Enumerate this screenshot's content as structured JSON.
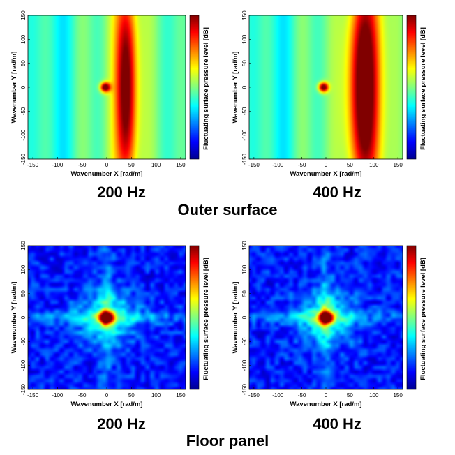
{
  "figure": {
    "sections": [
      {
        "name": "outer",
        "caption": "Outer surface"
      },
      {
        "name": "floor",
        "caption": "Floor panel"
      }
    ]
  },
  "chart_data": [
    {
      "type": "heatmap",
      "section": "Outer surface",
      "frequency_label": "200 Hz",
      "xlabel": "Wavenumber X [rad/m]",
      "ylabel": "Wavenumber Y [rad/m]",
      "colorbar_label": "Fluctuating surface pressure level [dB]",
      "xlim": [
        -160,
        160
      ],
      "ylim": [
        -150,
        150
      ],
      "xticks": [
        -150,
        -100,
        -50,
        0,
        50,
        100,
        150
      ],
      "yticks": [
        -150,
        -100,
        -50,
        0,
        50,
        100,
        150
      ],
      "pattern": "outer",
      "features": {
        "spot_kx": -3,
        "spot_ky": 0,
        "ridge_kx": 40,
        "ridge_width": 14
      }
    },
    {
      "type": "heatmap",
      "section": "Outer surface",
      "frequency_label": "400 Hz",
      "xlabel": "Wavenumber X [rad/m]",
      "ylabel": "Wavenumber Y [rad/m]",
      "colorbar_label": "Fluctuating surface pressure level [dB]",
      "xlim": [
        -160,
        160
      ],
      "ylim": [
        -150,
        150
      ],
      "xticks": [
        -150,
        -100,
        -50,
        0,
        50,
        100,
        150
      ],
      "yticks": [
        -150,
        -100,
        -50,
        0,
        50,
        100,
        150
      ],
      "pattern": "outer",
      "features": {
        "spot_kx": -5,
        "spot_ky": 0,
        "ridge_kx": 78,
        "ridge_width": 22
      }
    },
    {
      "type": "heatmap",
      "section": "Floor panel",
      "frequency_label": "200 Hz",
      "xlabel": "Wavenumber X [rad/m]",
      "ylabel": "Wavenumber Y [rad/m]",
      "colorbar_label": "Fluctuating surface pressure level [dB]",
      "xlim": [
        -160,
        160
      ],
      "ylim": [
        -150,
        150
      ],
      "xticks": [
        -150,
        -100,
        -50,
        0,
        50,
        100,
        150
      ],
      "yticks": [
        -150,
        -100,
        -50,
        0,
        50,
        100,
        150
      ],
      "pattern": "floor",
      "features": {
        "spot_kx": 0,
        "spot_ky": 0,
        "seed": 7
      }
    },
    {
      "type": "heatmap",
      "section": "Floor panel",
      "frequency_label": "400 Hz",
      "xlabel": "Wavenumber X [rad/m]",
      "ylabel": "Wavenumber Y [rad/m]",
      "colorbar_label": "Fluctuating surface pressure level [dB]",
      "xlim": [
        -160,
        160
      ],
      "ylim": [
        -150,
        150
      ],
      "xticks": [
        -150,
        -100,
        -50,
        0,
        50,
        100,
        150
      ],
      "yticks": [
        -150,
        -100,
        -50,
        0,
        50,
        100,
        150
      ],
      "pattern": "floor",
      "features": {
        "spot_kx": 0,
        "spot_ky": 0,
        "seed": 19
      }
    }
  ]
}
